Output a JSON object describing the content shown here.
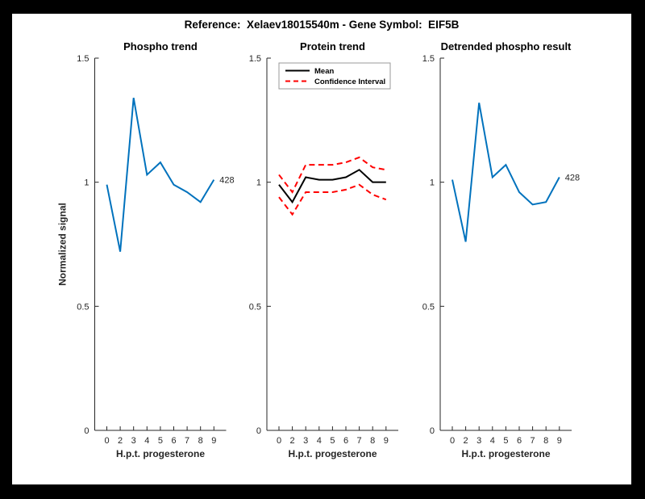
{
  "figure": {
    "title": "Reference:  Xelaev18015540m - Gene Symbol:  EIF5B",
    "background_color": "#ffffff",
    "frame_color": "#000000",
    "axis_color": "#262626"
  },
  "chart_data": [
    {
      "type": "line",
      "title": "Phospho trend",
      "xlabel": "H.p.t. progesterone",
      "ylabel": "Normalized signal",
      "xtick_labels": [
        "0",
        "2",
        "3",
        "4",
        "5",
        "6",
        "7",
        "8",
        "9"
      ],
      "yticks": [
        0,
        0.5,
        1,
        1.5
      ],
      "ytick_labels": [
        "0",
        "0.5",
        "1",
        "1.5"
      ],
      "ylim": [
        0,
        1.5
      ],
      "grid": false,
      "series": [
        {
          "color": "#0072BD",
          "style": "solid",
          "values": [
            0.99,
            0.72,
            1.34,
            1.03,
            1.08,
            0.99,
            0.96,
            0.92,
            1.01
          ]
        }
      ],
      "end_label": "428"
    },
    {
      "type": "line",
      "title": "Protein trend",
      "xlabel": "H.p.t. progesterone",
      "ylabel": "",
      "xtick_labels": [
        "0",
        "2",
        "3",
        "4",
        "5",
        "6",
        "7",
        "8",
        "9"
      ],
      "yticks": [
        0,
        0.5,
        1,
        1.5
      ],
      "ytick_labels": [
        "0",
        "0.5",
        "1",
        "1.5"
      ],
      "ylim": [
        0,
        1.5
      ],
      "grid": false,
      "series": [
        {
          "name": "Mean",
          "color": "#000000",
          "style": "solid",
          "values": [
            0.99,
            0.92,
            1.02,
            1.01,
            1.01,
            1.02,
            1.05,
            1.0,
            1.0
          ]
        },
        {
          "name": "Confidence Interval",
          "color": "#FF0000",
          "style": "dashed",
          "values": [
            1.03,
            0.96,
            1.07,
            1.07,
            1.07,
            1.08,
            1.1,
            1.06,
            1.05
          ]
        },
        {
          "name": "Confidence Interval",
          "color": "#FF0000",
          "style": "dashed",
          "values": [
            0.94,
            0.87,
            0.96,
            0.96,
            0.96,
            0.97,
            0.99,
            0.95,
            0.93
          ]
        }
      ],
      "legend": {
        "position": "northwest",
        "entries": [
          {
            "label": "Mean",
            "color": "#000000",
            "style": "solid"
          },
          {
            "label": "Confidence Interval",
            "color": "#FF0000",
            "style": "dashed"
          }
        ]
      }
    },
    {
      "type": "line",
      "title": "Detrended phospho result",
      "xlabel": "H.p.t. progesterone",
      "ylabel": "",
      "xtick_labels": [
        "0",
        "2",
        "3",
        "4",
        "5",
        "6",
        "7",
        "8",
        "9"
      ],
      "yticks": [
        0,
        0.5,
        1,
        1.5
      ],
      "ytick_labels": [
        "0",
        "0.5",
        "1",
        "1.5"
      ],
      "ylim": [
        0,
        1.5
      ],
      "grid": false,
      "series": [
        {
          "color": "#0072BD",
          "style": "solid",
          "values": [
            1.01,
            0.76,
            1.32,
            1.02,
            1.07,
            0.96,
            0.91,
            0.92,
            1.02
          ]
        }
      ],
      "end_label": "428"
    }
  ]
}
